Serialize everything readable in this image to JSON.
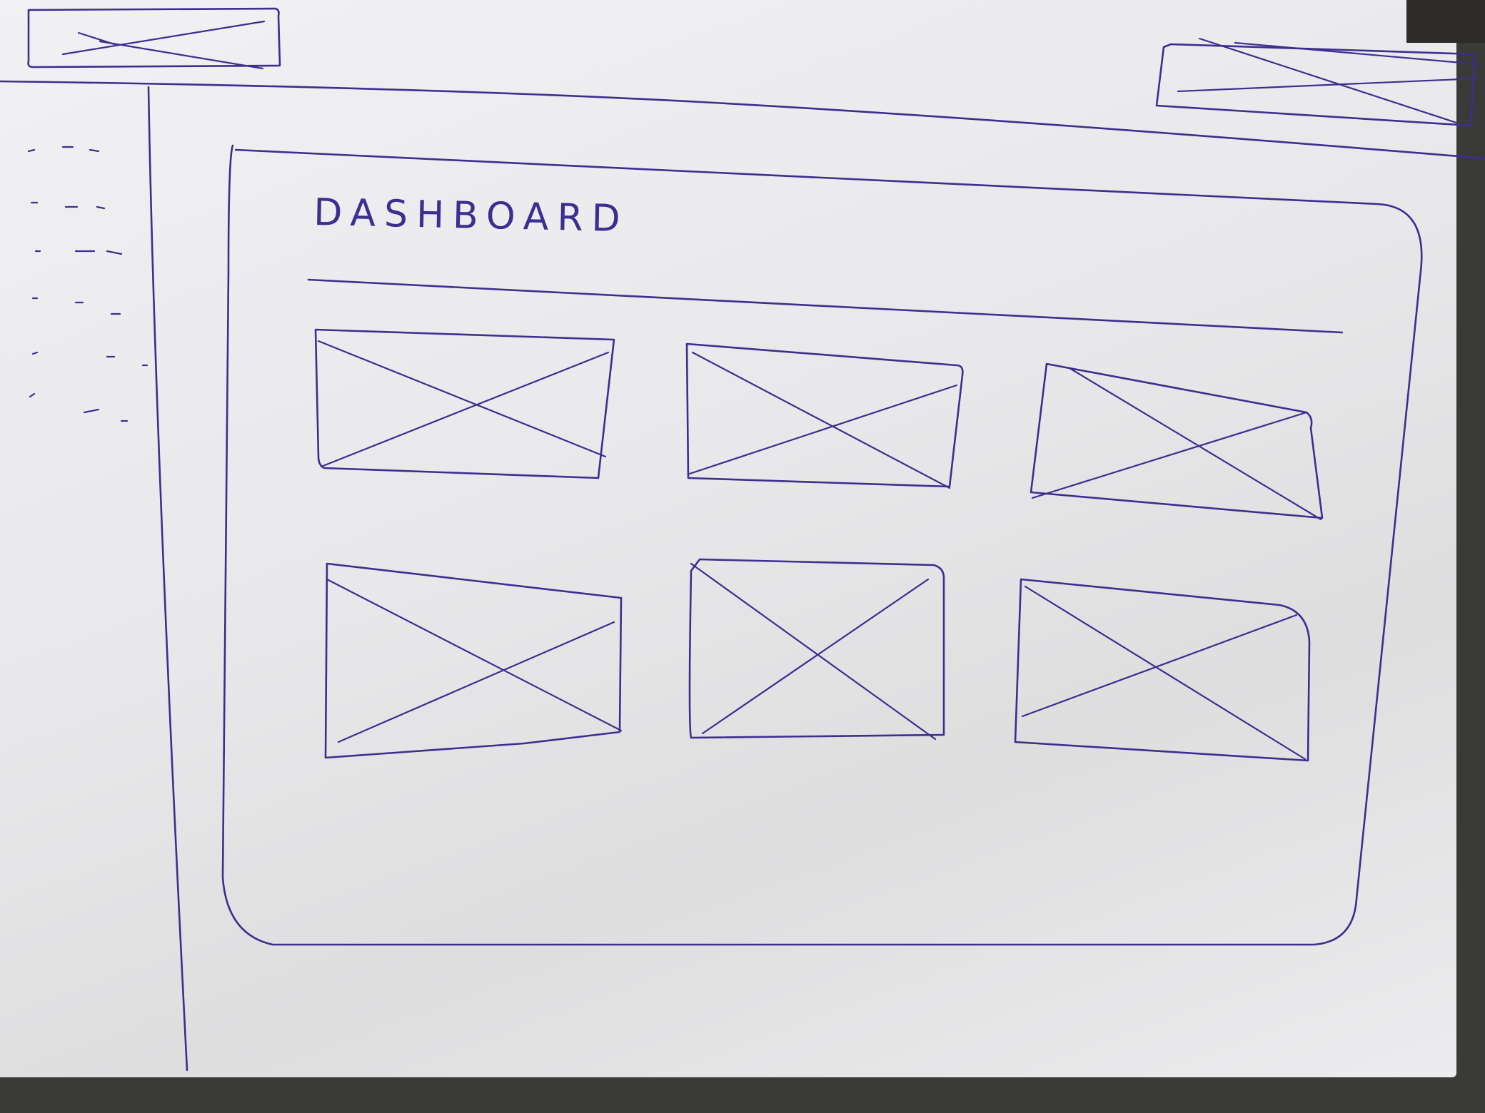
{
  "page": {
    "title": "DASHBOARD"
  },
  "header": {
    "logo": "image-placeholder-icon",
    "profile": "image-placeholder-icon"
  },
  "sidebar": {
    "items": [
      "",
      "",
      "",
      "",
      "",
      ""
    ]
  },
  "cards": [
    {
      "icon": "image-placeholder-icon"
    },
    {
      "icon": "image-placeholder-icon"
    },
    {
      "icon": "image-placeholder-icon"
    },
    {
      "icon": "image-placeholder-icon"
    },
    {
      "icon": "image-placeholder-icon"
    },
    {
      "icon": "image-placeholder-icon"
    }
  ],
  "colors": {
    "ink": "#3b2f8f",
    "paper": "#ececee"
  }
}
